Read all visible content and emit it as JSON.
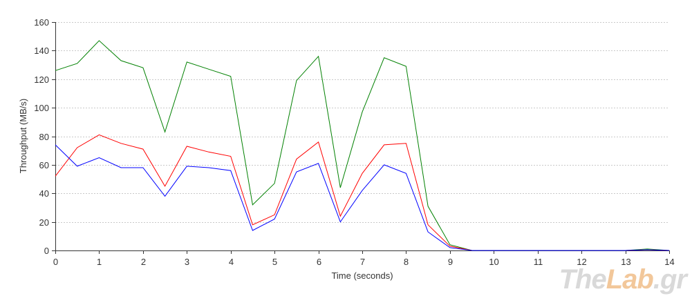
{
  "chart_data": {
    "type": "line",
    "xlabel": "Time (seconds)",
    "ylabel": "Throughput (MB/s)",
    "xlim": [
      0,
      14
    ],
    "ylim": [
      0,
      160
    ],
    "x_ticks": [
      0,
      1,
      2,
      3,
      4,
      5,
      6,
      7,
      8,
      9,
      10,
      11,
      12,
      13,
      14
    ],
    "y_ticks": [
      0,
      20,
      40,
      60,
      80,
      100,
      120,
      140,
      160
    ],
    "grid": "horizontal dashed",
    "legend": "none",
    "x": [
      0,
      0.5,
      1,
      1.5,
      2,
      2.5,
      3,
      3.5,
      4,
      4.5,
      5,
      5.5,
      6,
      6.5,
      7,
      7.5,
      8,
      8.5,
      9,
      9.5,
      10,
      10.5,
      11,
      11.5,
      12,
      12.5,
      13,
      13.5,
      14
    ],
    "series": [
      {
        "color": "#008000",
        "values": [
          126,
          131,
          147,
          133,
          128,
          83,
          132,
          127,
          122,
          32,
          47,
          119,
          136,
          44,
          97,
          135,
          129,
          31,
          4,
          0,
          0,
          0,
          0,
          0,
          0,
          0,
          0,
          1,
          0
        ]
      },
      {
        "color": "#ff0000",
        "values": [
          52,
          72,
          81,
          75,
          71,
          45,
          73,
          69,
          66,
          18,
          25,
          64,
          76,
          24,
          54,
          74,
          75,
          18,
          3,
          0,
          0,
          0,
          0,
          0,
          0,
          0,
          0,
          0.5,
          0
        ]
      },
      {
        "color": "#0000ff",
        "values": [
          74,
          59,
          65,
          58,
          58,
          38,
          59,
          58,
          56,
          14,
          22,
          55,
          61,
          20,
          42,
          60,
          54,
          13,
          2,
          0,
          0,
          0,
          0,
          0,
          0,
          0,
          0,
          0.5,
          0
        ]
      }
    ]
  },
  "watermark": {
    "part1": "The",
    "part2": "Lab",
    "part3": ".gr"
  }
}
